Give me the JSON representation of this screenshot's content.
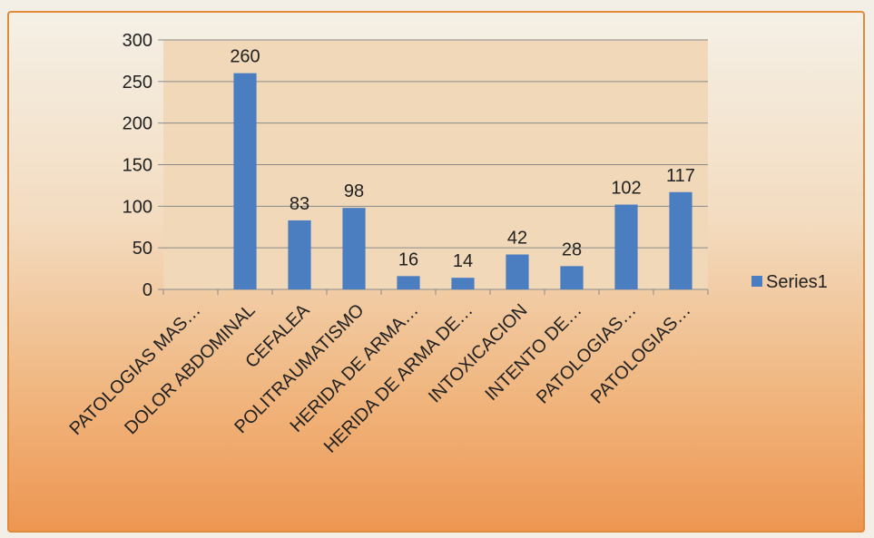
{
  "chart_data": {
    "type": "bar",
    "categories": [
      "PATOLOGIAS MAS…",
      "DOLOR ABDOMINAL",
      "CEFALEA",
      "POLITRAUMATISMO",
      "HERIDA DE ARMA…",
      "HERIDA DE ARMA DE…",
      "INTOXICACION",
      "INTENTO DE…",
      "PATOLOGIAS…",
      "PATOLOGIAS…"
    ],
    "series": [
      {
        "name": "Series1",
        "values": [
          null,
          260,
          83,
          98,
          16,
          14,
          42,
          28,
          102,
          117
        ],
        "labels": [
          "",
          "260",
          "83",
          "98",
          "16",
          "14",
          "42",
          "28",
          "102",
          "117"
        ],
        "color": "#4a7ec0"
      }
    ],
    "y_ticks": [
      "0",
      "50",
      "100",
      "150",
      "200",
      "250",
      "300"
    ],
    "ylim": [
      0,
      300
    ],
    "grid": true,
    "legend": "right",
    "plot_background": "#f0d8b8"
  }
}
